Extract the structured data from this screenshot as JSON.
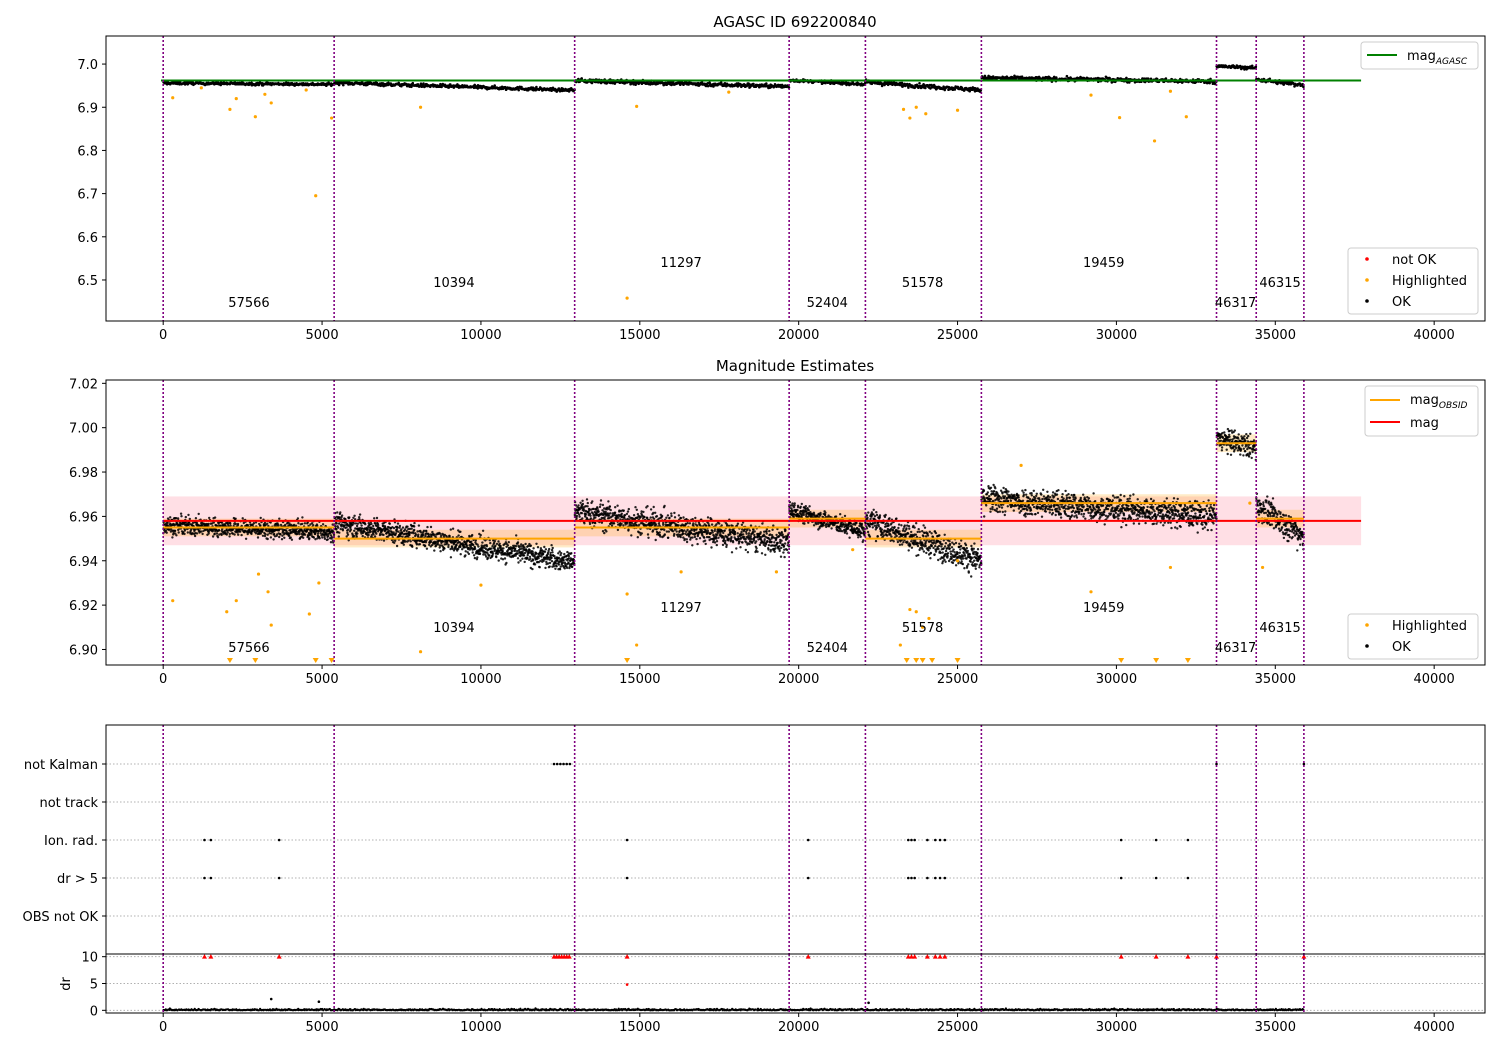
{
  "colors": {
    "ok": "#000000",
    "highlighted": "#ffa500",
    "not_ok": "#ff0000",
    "agasc_line": "#008000",
    "mag_line": "#ff0000",
    "obsid_line": "#ffa500",
    "obsid_sep": "#800080",
    "band": "#ffc0cb"
  },
  "x_ticks": [
    0,
    5000,
    10000,
    15000,
    20000,
    25000,
    30000,
    35000,
    40000
  ],
  "obsid_boundaries": [
    0,
    5380,
    12950,
    19700,
    22100,
    25750,
    33150,
    34400,
    35900
  ],
  "obsids": [
    {
      "label": "57566",
      "x": 2700
    },
    {
      "label": "10394",
      "x": 9150
    },
    {
      "label": "11297",
      "x": 16300
    },
    {
      "label": "52404",
      "x": 20900
    },
    {
      "label": "51578",
      "x": 23900
    },
    {
      "label": "19459",
      "x": 29600
    },
    {
      "label": "46317",
      "x": 33750
    },
    {
      "label": "46315",
      "x": 35150
    }
  ],
  "chart_data": [
    {
      "type": "scatter",
      "title": "AGASC ID 692200840",
      "xlim": [
        -1800,
        41600
      ],
      "ylim": [
        6.405,
        7.065
      ],
      "y_ticks": [
        "7.0",
        "6.9",
        "6.8",
        "6.7",
        "6.6",
        "6.5"
      ],
      "y_tick_values": [
        7.0,
        6.9,
        6.8,
        6.7,
        6.6,
        6.5
      ],
      "mag_agasc": 6.962,
      "legend_top": {
        "mag_label": "mag",
        "mag_sub": "AGASC"
      },
      "legend_bottom": [
        "not OK",
        "Highlighted",
        "OK"
      ],
      "highlighted_points": [
        [
          300,
          6.922
        ],
        [
          1200,
          6.945
        ],
        [
          2100,
          6.895
        ],
        [
          2300,
          6.92
        ],
        [
          2900,
          6.878
        ],
        [
          3200,
          6.93
        ],
        [
          3400,
          6.91
        ],
        [
          4500,
          6.94
        ],
        [
          4800,
          6.695
        ],
        [
          5300,
          6.875
        ],
        [
          8100,
          6.9
        ],
        [
          14600,
          6.458
        ],
        [
          14900,
          6.902
        ],
        [
          17800,
          6.935
        ],
        [
          23300,
          6.895
        ],
        [
          23500,
          6.875
        ],
        [
          23700,
          6.9
        ],
        [
          24000,
          6.885
        ],
        [
          25000,
          6.893
        ],
        [
          29200,
          6.928
        ],
        [
          30100,
          6.876
        ],
        [
          31200,
          6.822
        ],
        [
          31700,
          6.937
        ],
        [
          32200,
          6.878
        ]
      ]
    },
    {
      "type": "scatter",
      "title": "Magnitude Estimates",
      "xlim": [
        -1800,
        41600
      ],
      "ylim": [
        6.893,
        7.0215
      ],
      "y_ticks": [
        "7.02",
        "7.00",
        "6.98",
        "6.96",
        "6.94",
        "6.92",
        "6.90"
      ],
      "y_tick_values": [
        7.02,
        7.0,
        6.98,
        6.96,
        6.94,
        6.92,
        6.9
      ],
      "mag": 6.958,
      "mag_band": [
        6.947,
        6.969
      ],
      "legend_top": [
        {
          "label": "mag",
          "sub": "OBSID"
        },
        {
          "label": "mag",
          "sub": ""
        }
      ],
      "legend_bottom": [
        "Highlighted",
        "OK"
      ],
      "obsid_means": [
        {
          "x0": 0,
          "x1": 5380,
          "mag": 6.955
        },
        {
          "x0": 5380,
          "x1": 12950,
          "mag": 6.95
        },
        {
          "x0": 12950,
          "x1": 19700,
          "mag": 6.955
        },
        {
          "x0": 19700,
          "x1": 22100,
          "mag": 6.959
        },
        {
          "x0": 22100,
          "x1": 25750,
          "mag": 6.95
        },
        {
          "x0": 25750,
          "x1": 33150,
          "mag": 6.966
        },
        {
          "x0": 33150,
          "x1": 34400,
          "mag": 6.993
        },
        {
          "x0": 34400,
          "x1": 35900,
          "mag": 6.959
        }
      ],
      "highlighted_points": [
        [
          300,
          6.922
        ],
        [
          2000,
          6.917
        ],
        [
          2300,
          6.922
        ],
        [
          3000,
          6.934
        ],
        [
          3300,
          6.926
        ],
        [
          3400,
          6.911
        ],
        [
          4600,
          6.916
        ],
        [
          4900,
          6.93
        ],
        [
          8100,
          6.899
        ],
        [
          10000,
          6.929
        ],
        [
          14600,
          6.925
        ],
        [
          14900,
          6.902
        ],
        [
          16300,
          6.935
        ],
        [
          19300,
          6.935
        ],
        [
          21700,
          6.945
        ],
        [
          23200,
          6.902
        ],
        [
          23500,
          6.918
        ],
        [
          23700,
          6.917
        ],
        [
          23900,
          6.91
        ],
        [
          24100,
          6.914
        ],
        [
          25000,
          6.94
        ],
        [
          27000,
          6.983
        ],
        [
          29200,
          6.926
        ],
        [
          31700,
          6.937
        ],
        [
          34200,
          6.966
        ],
        [
          34600,
          6.937
        ]
      ]
    },
    {
      "type": "scatter",
      "title": "",
      "xlim": [
        -1800,
        41600
      ],
      "flag_rows": [
        "not Kalman",
        "not track",
        "Ion. rad.",
        "dr > 5",
        "OBS not OK"
      ],
      "flags": {
        "not Kalman": [
          12300,
          12400,
          12500,
          12600,
          12700,
          12800,
          33150,
          35900
        ],
        "not track": [],
        "Ion. rad.": [
          1300,
          1500,
          3650,
          14600,
          20300,
          23450,
          23550,
          23650,
          24050,
          24300,
          24450,
          24600,
          30150,
          31250,
          32250
        ],
        "dr > 5": [
          1300,
          1500,
          3650,
          14600,
          20300,
          23450,
          23550,
          23650,
          24050,
          24300,
          24450,
          24600,
          30150,
          31250,
          32250
        ],
        "OBS not OK": []
      },
      "dr_ylabel": "dr",
      "dr_ylim": [
        -0.5,
        10.5
      ],
      "dr_ticks": [
        "10",
        "5",
        "0"
      ],
      "dr_tick_values": [
        10,
        5,
        0
      ],
      "dr_clipped_x": [
        1300,
        1500,
        3650,
        12300,
        12380,
        12460,
        12540,
        12620,
        12700,
        12780,
        14600,
        20300,
        23450,
        23550,
        23650,
        24050,
        24300,
        24450,
        24600,
        30150,
        31250,
        32250,
        33150,
        35900
      ],
      "dr_notable": [
        [
          14600,
          4.8
        ],
        [
          3400,
          2.1
        ],
        [
          4900,
          1.6
        ],
        [
          22200,
          1.4
        ]
      ]
    }
  ]
}
